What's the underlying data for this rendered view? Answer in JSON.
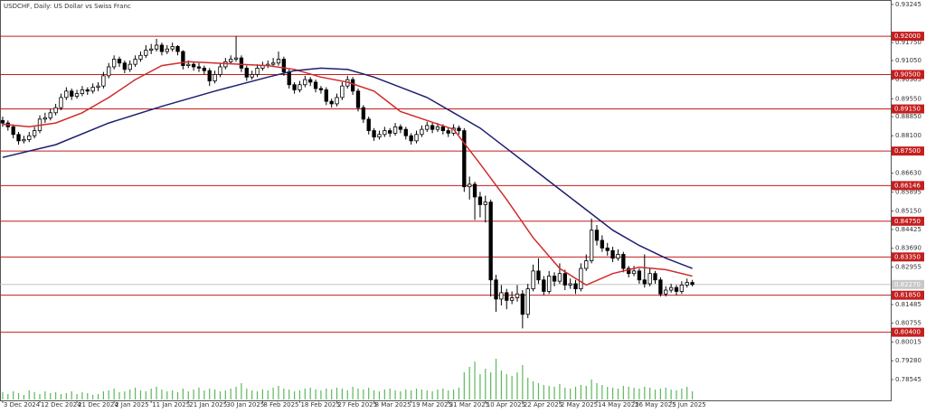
{
  "chart_data": {
    "type": "candlestick",
    "title": "USDCHF, Daily:  US Dollar vs Swiss Franc",
    "ylim": [
      0.7773,
      0.9342
    ],
    "yticks": [
      {
        "value": 0.93245,
        "label": "0.93245"
      },
      {
        "value": 0.9175,
        "label": "0.91750"
      },
      {
        "value": 0.9105,
        "label": "0.91050"
      },
      {
        "value": 0.90305,
        "label": "0.90305"
      },
      {
        "value": 0.8955,
        "label": "0.89550"
      },
      {
        "value": 0.8885,
        "label": "0.88850"
      },
      {
        "value": 0.881,
        "label": "0.88100"
      },
      {
        "value": 0.8663,
        "label": "0.86630"
      },
      {
        "value": 0.85895,
        "label": "0.85895"
      },
      {
        "value": 0.8515,
        "label": "0.85150"
      },
      {
        "value": 0.84425,
        "label": "0.84425"
      },
      {
        "value": 0.8369,
        "label": "0.83690"
      },
      {
        "value": 0.82955,
        "label": "0.82955"
      },
      {
        "value": 0.81485,
        "label": "0.81485"
      },
      {
        "value": 0.80755,
        "label": "0.80755"
      },
      {
        "value": 0.80015,
        "label": "0.80015"
      },
      {
        "value": 0.7928,
        "label": "0.79280"
      },
      {
        "value": 0.78545,
        "label": "0.78545"
      }
    ],
    "xlim": [
      -0.5,
      167.4
    ],
    "xticks": [
      {
        "value": 0,
        "label": "3 Dec 2024"
      },
      {
        "value": 7,
        "label": "12 Dec 2024"
      },
      {
        "value": 14,
        "label": "21 Dec 2024"
      },
      {
        "value": 21,
        "label": "2 Jan 2025"
      },
      {
        "value": 28,
        "label": "11 Jan 2025"
      },
      {
        "value": 35,
        "label": "21 Jan 2025"
      },
      {
        "value": 42,
        "label": "30 Jan 2025"
      },
      {
        "value": 49,
        "label": "8 Feb 2025"
      },
      {
        "value": 56,
        "label": "18 Feb 2025"
      },
      {
        "value": 63,
        "label": "27 Feb 2025"
      },
      {
        "value": 70,
        "label": "8 Mar 2025"
      },
      {
        "value": 77,
        "label": "19 Mar 2025"
      },
      {
        "value": 84,
        "label": "31 Mar 2025"
      },
      {
        "value": 91,
        "label": "10 Apr 2025"
      },
      {
        "value": 98,
        "label": "22 Apr 2025"
      },
      {
        "value": 105,
        "label": "2 May 2025"
      },
      {
        "value": 112,
        "label": "14 May 2025"
      },
      {
        "value": 119,
        "label": "26 May 2025"
      },
      {
        "value": 126,
        "label": "5 Jun 2025"
      }
    ],
    "levels_color": "#c41e1e",
    "levels": [
      {
        "value": 0.92,
        "label": "0.92000"
      },
      {
        "value": 0.905,
        "label": "0.90500"
      },
      {
        "value": 0.8915,
        "label": "0.89150"
      },
      {
        "value": 0.875,
        "label": "0.87500"
      },
      {
        "value": 0.86146,
        "label": "0.86146"
      },
      {
        "value": 0.8475,
        "label": "0.84750"
      },
      {
        "value": 0.8335,
        "label": "0.83350"
      },
      {
        "value": 0.8185,
        "label": "0.81850"
      },
      {
        "value": 0.804,
        "label": "0.80400"
      }
    ],
    "last_price": {
      "value": 0.8227,
      "label": "0.82270"
    },
    "volume_color": "#5cb85c",
    "volumes": [
      8,
      6,
      9,
      7,
      5,
      10,
      8,
      6,
      9,
      7,
      8,
      6,
      7,
      9,
      6,
      8,
      7,
      5,
      6,
      9,
      10,
      12,
      8,
      9,
      11,
      13,
      10,
      9,
      12,
      14,
      11,
      9,
      10,
      8,
      12,
      9,
      11,
      13,
      10,
      12,
      11,
      9,
      10,
      12,
      14,
      18,
      12,
      10,
      9,
      11,
      10,
      13,
      15,
      12,
      11,
      9,
      10,
      12,
      13,
      11,
      10,
      12,
      11,
      13,
      12,
      10,
      14,
      12,
      11,
      13,
      10,
      9,
      11,
      12,
      10,
      9,
      11,
      10,
      12,
      11,
      10,
      9,
      11,
      12,
      10,
      11,
      13,
      30,
      36,
      42,
      28,
      34,
      30,
      45,
      32,
      28,
      26,
      30,
      38,
      24,
      20,
      18,
      16,
      15,
      14,
      17,
      13,
      12,
      14,
      16,
      15,
      22,
      18,
      16,
      14,
      13,
      12,
      15,
      14,
      13,
      12,
      14,
      13,
      11,
      12,
      13,
      11,
      10,
      12,
      14,
      9
    ],
    "ohlc": [
      [
        0.887,
        0.8885,
        0.8845,
        0.886
      ],
      [
        0.886,
        0.887,
        0.883,
        0.8845
      ],
      [
        0.8845,
        0.8855,
        0.88,
        0.8815
      ],
      [
        0.8815,
        0.8825,
        0.8775,
        0.879
      ],
      [
        0.879,
        0.881,
        0.878,
        0.8795
      ],
      [
        0.8795,
        0.8825,
        0.8785,
        0.881
      ],
      [
        0.881,
        0.8845,
        0.88,
        0.883
      ],
      [
        0.883,
        0.889,
        0.882,
        0.8875
      ],
      [
        0.8875,
        0.89,
        0.886,
        0.888
      ],
      [
        0.888,
        0.8915,
        0.887,
        0.89
      ],
      [
        0.89,
        0.8935,
        0.889,
        0.892
      ],
      [
        0.892,
        0.8975,
        0.891,
        0.896
      ],
      [
        0.896,
        0.9,
        0.895,
        0.8985
      ],
      [
        0.8985,
        0.8995,
        0.895,
        0.8965
      ],
      [
        0.8965,
        0.899,
        0.8955,
        0.8975
      ],
      [
        0.8975,
        0.9005,
        0.8965,
        0.899
      ],
      [
        0.899,
        0.9,
        0.897,
        0.8985
      ],
      [
        0.8985,
        0.9015,
        0.8975,
        0.9
      ],
      [
        0.9,
        0.902,
        0.8985,
        0.9005
      ],
      [
        0.9005,
        0.906,
        0.8995,
        0.9045
      ],
      [
        0.9045,
        0.9095,
        0.9035,
        0.908
      ],
      [
        0.908,
        0.9125,
        0.907,
        0.911
      ],
      [
        0.911,
        0.912,
        0.908,
        0.9095
      ],
      [
        0.9095,
        0.9105,
        0.9055,
        0.907
      ],
      [
        0.907,
        0.9105,
        0.906,
        0.909
      ],
      [
        0.909,
        0.9125,
        0.908,
        0.911
      ],
      [
        0.911,
        0.914,
        0.91,
        0.9125
      ],
      [
        0.9125,
        0.9165,
        0.9115,
        0.9145
      ],
      [
        0.9145,
        0.917,
        0.913,
        0.915
      ],
      [
        0.915,
        0.919,
        0.914,
        0.9165
      ],
      [
        0.9165,
        0.9175,
        0.9125,
        0.914
      ],
      [
        0.914,
        0.9165,
        0.913,
        0.915
      ],
      [
        0.915,
        0.9175,
        0.914,
        0.916
      ],
      [
        0.916,
        0.9165,
        0.9125,
        0.914
      ],
      [
        0.914,
        0.9145,
        0.907,
        0.9085
      ],
      [
        0.9085,
        0.9105,
        0.9075,
        0.909
      ],
      [
        0.909,
        0.91,
        0.9065,
        0.908
      ],
      [
        0.908,
        0.9095,
        0.906,
        0.9075
      ],
      [
        0.9075,
        0.9085,
        0.905,
        0.9065
      ],
      [
        0.9065,
        0.9075,
        0.9005,
        0.9025
      ],
      [
        0.9025,
        0.9065,
        0.9015,
        0.905
      ],
      [
        0.905,
        0.9095,
        0.904,
        0.908
      ],
      [
        0.908,
        0.9115,
        0.907,
        0.91
      ],
      [
        0.91,
        0.9125,
        0.909,
        0.911
      ],
      [
        0.911,
        0.92,
        0.91,
        0.9115
      ],
      [
        0.9115,
        0.9125,
        0.906,
        0.9075
      ],
      [
        0.9075,
        0.9085,
        0.9025,
        0.904
      ],
      [
        0.904,
        0.9065,
        0.903,
        0.905
      ],
      [
        0.905,
        0.909,
        0.904,
        0.9075
      ],
      [
        0.9075,
        0.91,
        0.9065,
        0.9085
      ],
      [
        0.9085,
        0.9105,
        0.9075,
        0.909
      ],
      [
        0.909,
        0.9115,
        0.908,
        0.9095
      ],
      [
        0.9095,
        0.914,
        0.9085,
        0.911
      ],
      [
        0.911,
        0.912,
        0.9045,
        0.906
      ],
      [
        0.906,
        0.907,
        0.8995,
        0.901
      ],
      [
        0.901,
        0.902,
        0.8975,
        0.899
      ],
      [
        0.899,
        0.9025,
        0.898,
        0.901
      ],
      [
        0.901,
        0.9045,
        0.9,
        0.903
      ],
      [
        0.903,
        0.904,
        0.9005,
        0.902
      ],
      [
        0.902,
        0.903,
        0.898,
        0.8995
      ],
      [
        0.8995,
        0.9005,
        0.8975,
        0.899
      ],
      [
        0.899,
        0.9,
        0.893,
        0.8945
      ],
      [
        0.8945,
        0.8955,
        0.892,
        0.8935
      ],
      [
        0.8935,
        0.8975,
        0.8925,
        0.896
      ],
      [
        0.896,
        0.902,
        0.895,
        0.9005
      ],
      [
        0.9005,
        0.9045,
        0.8995,
        0.903
      ],
      [
        0.903,
        0.904,
        0.897,
        0.8985
      ],
      [
        0.8985,
        0.8995,
        0.8905,
        0.892
      ],
      [
        0.892,
        0.893,
        0.886,
        0.8875
      ],
      [
        0.8875,
        0.8885,
        0.8815,
        0.883
      ],
      [
        0.883,
        0.884,
        0.879,
        0.8805
      ],
      [
        0.8805,
        0.883,
        0.8795,
        0.8815
      ],
      [
        0.8815,
        0.8845,
        0.8805,
        0.883
      ],
      [
        0.883,
        0.884,
        0.8805,
        0.882
      ],
      [
        0.882,
        0.886,
        0.881,
        0.8845
      ],
      [
        0.8845,
        0.8855,
        0.882,
        0.8835
      ],
      [
        0.8835,
        0.8845,
        0.8795,
        0.881
      ],
      [
        0.881,
        0.882,
        0.8775,
        0.879
      ],
      [
        0.879,
        0.883,
        0.878,
        0.8815
      ],
      [
        0.8815,
        0.885,
        0.8805,
        0.8835
      ],
      [
        0.8835,
        0.8865,
        0.8825,
        0.885
      ],
      [
        0.885,
        0.886,
        0.882,
        0.8835
      ],
      [
        0.8835,
        0.886,
        0.8825,
        0.8845
      ],
      [
        0.8845,
        0.8855,
        0.8815,
        0.883
      ],
      [
        0.883,
        0.884,
        0.8805,
        0.882
      ],
      [
        0.882,
        0.8855,
        0.881,
        0.884
      ],
      [
        0.884,
        0.885,
        0.8815,
        0.883
      ],
      [
        0.883,
        0.884,
        0.859,
        0.861
      ],
      [
        0.861,
        0.865,
        0.856,
        0.862
      ],
      [
        0.862,
        0.863,
        0.848,
        0.857
      ],
      [
        0.857,
        0.859,
        0.849,
        0.854
      ],
      [
        0.854,
        0.8575,
        0.847,
        0.855
      ],
      [
        0.855,
        0.856,
        0.818,
        0.8245
      ],
      [
        0.8245,
        0.8265,
        0.812,
        0.817
      ],
      [
        0.817,
        0.8225,
        0.8145,
        0.8195
      ],
      [
        0.8195,
        0.821,
        0.813,
        0.8165
      ],
      [
        0.8165,
        0.82,
        0.815,
        0.8175
      ],
      [
        0.8175,
        0.8225,
        0.816,
        0.819
      ],
      [
        0.819,
        0.8205,
        0.8055,
        0.811
      ],
      [
        0.811,
        0.823,
        0.8095,
        0.821
      ],
      [
        0.821,
        0.8305,
        0.82,
        0.828
      ],
      [
        0.828,
        0.833,
        0.823,
        0.8245
      ],
      [
        0.8245,
        0.826,
        0.8185,
        0.82
      ],
      [
        0.82,
        0.828,
        0.819,
        0.826
      ],
      [
        0.826,
        0.8275,
        0.822,
        0.824
      ],
      [
        0.824,
        0.831,
        0.823,
        0.827
      ],
      [
        0.827,
        0.8285,
        0.8205,
        0.8225
      ],
      [
        0.8225,
        0.825,
        0.821,
        0.823
      ],
      [
        0.823,
        0.8245,
        0.819,
        0.821
      ],
      [
        0.821,
        0.831,
        0.82,
        0.829
      ],
      [
        0.829,
        0.8345,
        0.828,
        0.832
      ],
      [
        0.832,
        0.8485,
        0.831,
        0.844
      ],
      [
        0.844,
        0.846,
        0.838,
        0.84
      ],
      [
        0.84,
        0.842,
        0.8355,
        0.837
      ],
      [
        0.837,
        0.839,
        0.834,
        0.836
      ],
      [
        0.836,
        0.8375,
        0.8315,
        0.833
      ],
      [
        0.833,
        0.8365,
        0.832,
        0.8345
      ],
      [
        0.8345,
        0.8355,
        0.8275,
        0.829
      ],
      [
        0.829,
        0.83,
        0.8255,
        0.827
      ],
      [
        0.827,
        0.83,
        0.826,
        0.828
      ],
      [
        0.828,
        0.829,
        0.823,
        0.8245
      ],
      [
        0.8245,
        0.8345,
        0.8215,
        0.823
      ],
      [
        0.823,
        0.829,
        0.822,
        0.827
      ],
      [
        0.827,
        0.828,
        0.823,
        0.8245
      ],
      [
        0.8245,
        0.8255,
        0.818,
        0.819
      ],
      [
        0.819,
        0.822,
        0.818,
        0.8205
      ],
      [
        0.8205,
        0.823,
        0.8195,
        0.8215
      ],
      [
        0.8215,
        0.8225,
        0.8185,
        0.82
      ],
      [
        0.82,
        0.824,
        0.819,
        0.8225
      ],
      [
        0.8225,
        0.825,
        0.8215,
        0.8235
      ],
      [
        0.8235,
        0.8245,
        0.822,
        0.8227
      ]
    ],
    "lines": [
      {
        "color": "#d02b2b",
        "x": [
          0,
          5,
          10,
          15,
          20,
          25,
          30,
          35,
          40,
          45,
          50,
          55,
          60,
          65,
          70,
          75,
          80,
          85,
          90,
          95,
          100,
          105,
          110,
          115,
          120,
          125,
          130
        ],
        "values": [
          0.8855,
          0.8845,
          0.886,
          0.89,
          0.896,
          0.903,
          0.9085,
          0.91,
          0.9095,
          0.909,
          0.9085,
          0.907,
          0.904,
          0.902,
          0.8985,
          0.8905,
          0.887,
          0.8835,
          0.87,
          0.856,
          0.841,
          0.829,
          0.8225,
          0.827,
          0.8295,
          0.8285,
          0.826
        ]
      },
      {
        "color": "#1c1f6e",
        "x": [
          0,
          10,
          20,
          30,
          40,
          50,
          55,
          60,
          65,
          70,
          75,
          80,
          85,
          90,
          95,
          100,
          105,
          110,
          115,
          120,
          125,
          130
        ],
        "values": [
          0.8725,
          0.8775,
          0.886,
          0.8925,
          0.8985,
          0.904,
          0.9065,
          0.9075,
          0.907,
          0.904,
          0.9,
          0.896,
          0.89,
          0.884,
          0.876,
          0.868,
          0.86,
          0.852,
          0.844,
          0.838,
          0.833,
          0.829
        ]
      }
    ]
  }
}
